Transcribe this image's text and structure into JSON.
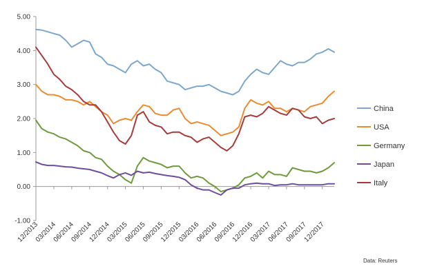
{
  "chart_data": {
    "type": "line",
    "title": "",
    "xlabel": "",
    "ylabel": "",
    "ylim": [
      -1.0,
      5.0
    ],
    "y_ticks": [
      "5.00",
      "4.00",
      "3.00",
      "2.00",
      "1.00",
      "0.00",
      "-1.00"
    ],
    "x_tick_labels": [
      "12/2013",
      "03/2014",
      "06/2014",
      "09/2014",
      "12/2014",
      "03/2015",
      "06/2015",
      "09/2015",
      "12/2015",
      "03/2016",
      "06/2016",
      "09/2016",
      "12/2016",
      "03/2017",
      "06/2017",
      "09/2017",
      "12/2017"
    ],
    "x_range": [
      "2013-12",
      "2018-02"
    ],
    "grid": "none",
    "legend_position": "right",
    "source_note": "Data: Reuters",
    "series": [
      {
        "name": "China",
        "color": "#7BA7CF",
        "x": [
          "2013-12",
          "2014-01",
          "2014-02",
          "2014-03",
          "2014-04",
          "2014-05",
          "2014-06",
          "2014-07",
          "2014-08",
          "2014-09",
          "2014-10",
          "2014-11",
          "2014-12",
          "2015-01",
          "2015-02",
          "2015-03",
          "2015-04",
          "2015-05",
          "2015-06",
          "2015-07",
          "2015-08",
          "2015-09",
          "2015-10",
          "2015-11",
          "2015-12",
          "2016-01",
          "2016-02",
          "2016-03",
          "2016-04",
          "2016-05",
          "2016-06",
          "2016-07",
          "2016-08",
          "2016-09",
          "2016-10",
          "2016-11",
          "2016-12",
          "2017-01",
          "2017-02",
          "2017-03",
          "2017-04",
          "2017-05",
          "2017-06",
          "2017-07",
          "2017-08",
          "2017-09",
          "2017-10",
          "2017-11",
          "2017-12",
          "2018-01",
          "2018-02"
        ],
        "values": [
          4.62,
          4.6,
          4.55,
          4.5,
          4.45,
          4.3,
          4.1,
          4.2,
          4.3,
          4.25,
          3.9,
          3.8,
          3.6,
          3.55,
          3.45,
          3.35,
          3.6,
          3.7,
          3.55,
          3.6,
          3.45,
          3.35,
          3.1,
          3.05,
          3.0,
          2.85,
          2.9,
          2.95,
          2.95,
          3.0,
          2.9,
          2.8,
          2.75,
          2.7,
          2.8,
          3.1,
          3.3,
          3.45,
          3.35,
          3.3,
          3.5,
          3.7,
          3.6,
          3.55,
          3.65,
          3.65,
          3.75,
          3.9,
          3.95,
          4.05,
          3.95
        ]
      },
      {
        "name": "USA",
        "color": "#ED8A2F",
        "x": [
          "2013-12",
          "2014-01",
          "2014-02",
          "2014-03",
          "2014-04",
          "2014-05",
          "2014-06",
          "2014-07",
          "2014-08",
          "2014-09",
          "2014-10",
          "2014-11",
          "2014-12",
          "2015-01",
          "2015-02",
          "2015-03",
          "2015-04",
          "2015-05",
          "2015-06",
          "2015-07",
          "2015-08",
          "2015-09",
          "2015-10",
          "2015-11",
          "2015-12",
          "2016-01",
          "2016-02",
          "2016-03",
          "2016-04",
          "2016-05",
          "2016-06",
          "2016-07",
          "2016-08",
          "2016-09",
          "2016-10",
          "2016-11",
          "2016-12",
          "2017-01",
          "2017-02",
          "2017-03",
          "2017-04",
          "2017-05",
          "2017-06",
          "2017-07",
          "2017-08",
          "2017-09",
          "2017-10",
          "2017-11",
          "2017-12",
          "2018-01",
          "2018-02"
        ],
        "values": [
          3.0,
          2.8,
          2.7,
          2.7,
          2.65,
          2.55,
          2.55,
          2.5,
          2.4,
          2.5,
          2.35,
          2.2,
          2.1,
          1.85,
          1.95,
          2.0,
          1.95,
          2.2,
          2.4,
          2.35,
          2.15,
          2.1,
          2.1,
          2.25,
          2.3,
          2.0,
          1.85,
          1.9,
          1.85,
          1.8,
          1.65,
          1.5,
          1.55,
          1.6,
          1.75,
          2.3,
          2.55,
          2.45,
          2.4,
          2.5,
          2.3,
          2.3,
          2.2,
          2.3,
          2.25,
          2.2,
          2.35,
          2.4,
          2.45,
          2.65,
          2.8
        ]
      },
      {
        "name": "Germany",
        "color": "#6E9A3C",
        "x": [
          "2013-12",
          "2014-01",
          "2014-02",
          "2014-03",
          "2014-04",
          "2014-05",
          "2014-06",
          "2014-07",
          "2014-08",
          "2014-09",
          "2014-10",
          "2014-11",
          "2014-12",
          "2015-01",
          "2015-02",
          "2015-03",
          "2015-04",
          "2015-05",
          "2015-06",
          "2015-07",
          "2015-08",
          "2015-09",
          "2015-10",
          "2015-11",
          "2015-12",
          "2016-01",
          "2016-02",
          "2016-03",
          "2016-04",
          "2016-05",
          "2016-06",
          "2016-07",
          "2016-08",
          "2016-09",
          "2016-10",
          "2016-11",
          "2016-12",
          "2017-01",
          "2017-02",
          "2017-03",
          "2017-04",
          "2017-05",
          "2017-06",
          "2017-07",
          "2017-08",
          "2017-09",
          "2017-10",
          "2017-11",
          "2017-12",
          "2018-01",
          "2018-02"
        ],
        "values": [
          1.95,
          1.7,
          1.6,
          1.55,
          1.45,
          1.4,
          1.3,
          1.2,
          1.05,
          1.0,
          0.85,
          0.8,
          0.6,
          0.45,
          0.35,
          0.2,
          0.1,
          0.6,
          0.85,
          0.75,
          0.7,
          0.65,
          0.55,
          0.6,
          0.6,
          0.4,
          0.25,
          0.3,
          0.25,
          0.1,
          0.0,
          -0.15,
          -0.1,
          -0.05,
          0.05,
          0.25,
          0.3,
          0.4,
          0.25,
          0.45,
          0.35,
          0.35,
          0.3,
          0.55,
          0.5,
          0.45,
          0.45,
          0.4,
          0.45,
          0.55,
          0.7
        ]
      },
      {
        "name": "Japan",
        "color": "#6E4C9E",
        "x": [
          "2013-12",
          "2014-01",
          "2014-02",
          "2014-03",
          "2014-04",
          "2014-05",
          "2014-06",
          "2014-07",
          "2014-08",
          "2014-09",
          "2014-10",
          "2014-11",
          "2014-12",
          "2015-01",
          "2015-02",
          "2015-03",
          "2015-04",
          "2015-05",
          "2015-06",
          "2015-07",
          "2015-08",
          "2015-09",
          "2015-10",
          "2015-11",
          "2015-12",
          "2016-01",
          "2016-02",
          "2016-03",
          "2016-04",
          "2016-05",
          "2016-06",
          "2016-07",
          "2016-08",
          "2016-09",
          "2016-10",
          "2016-11",
          "2016-12",
          "2017-01",
          "2017-02",
          "2017-03",
          "2017-04",
          "2017-05",
          "2017-06",
          "2017-07",
          "2017-08",
          "2017-09",
          "2017-10",
          "2017-11",
          "2017-12",
          "2018-01",
          "2018-02"
        ],
        "values": [
          0.72,
          0.65,
          0.62,
          0.62,
          0.6,
          0.58,
          0.57,
          0.54,
          0.52,
          0.5,
          0.45,
          0.4,
          0.32,
          0.25,
          0.35,
          0.4,
          0.33,
          0.45,
          0.4,
          0.42,
          0.38,
          0.35,
          0.32,
          0.3,
          0.27,
          0.2,
          0.05,
          -0.05,
          -0.1,
          -0.1,
          -0.18,
          -0.25,
          -0.1,
          -0.05,
          -0.05,
          0.05,
          0.08,
          0.1,
          0.08,
          0.08,
          0.03,
          0.05,
          0.05,
          0.08,
          0.05,
          0.05,
          0.05,
          0.05,
          0.05,
          0.08,
          0.08
        ]
      },
      {
        "name": "Italy",
        "color": "#A93A3A",
        "x": [
          "2013-12",
          "2014-01",
          "2014-02",
          "2014-03",
          "2014-04",
          "2014-05",
          "2014-06",
          "2014-07",
          "2014-08",
          "2014-09",
          "2014-10",
          "2014-11",
          "2014-12",
          "2015-01",
          "2015-02",
          "2015-03",
          "2015-04",
          "2015-05",
          "2015-06",
          "2015-07",
          "2015-08",
          "2015-09",
          "2015-10",
          "2015-11",
          "2015-12",
          "2016-01",
          "2016-02",
          "2016-03",
          "2016-04",
          "2016-05",
          "2016-06",
          "2016-07",
          "2016-08",
          "2016-09",
          "2016-10",
          "2016-11",
          "2016-12",
          "2017-01",
          "2017-02",
          "2017-03",
          "2017-04",
          "2017-05",
          "2017-06",
          "2017-07",
          "2017-08",
          "2017-09",
          "2017-10",
          "2017-11",
          "2017-12",
          "2018-01",
          "2018-02"
        ],
        "values": [
          4.1,
          3.85,
          3.6,
          3.3,
          3.15,
          2.95,
          2.85,
          2.7,
          2.5,
          2.4,
          2.4,
          2.2,
          1.9,
          1.6,
          1.35,
          1.25,
          1.5,
          2.1,
          2.2,
          1.9,
          1.8,
          1.75,
          1.55,
          1.6,
          1.6,
          1.5,
          1.45,
          1.3,
          1.4,
          1.45,
          1.3,
          1.15,
          1.05,
          1.2,
          1.55,
          2.05,
          2.1,
          2.05,
          2.15,
          2.35,
          2.25,
          2.15,
          2.1,
          2.3,
          2.25,
          2.05,
          2.0,
          2.05,
          1.85,
          1.95,
          2.0
        ]
      }
    ]
  }
}
